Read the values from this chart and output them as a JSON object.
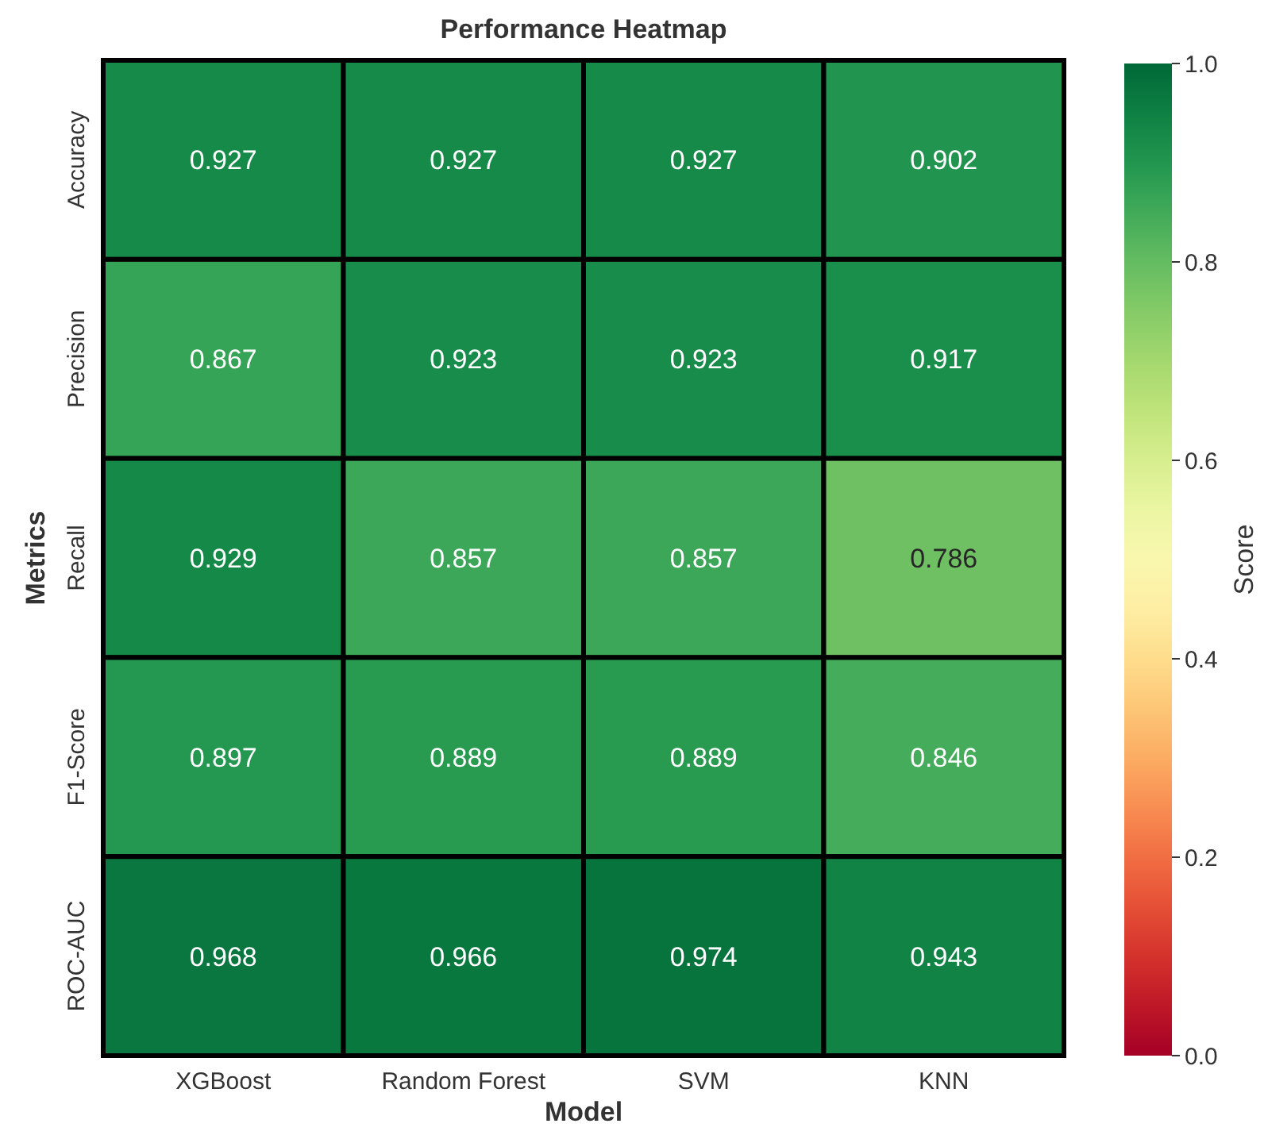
{
  "chart_data": {
    "type": "heatmap",
    "title": "Performance Heatmap",
    "xlabel": "Model",
    "ylabel": "Metrics",
    "clabel": "Score",
    "categories": [
      "XGBoost",
      "Random Forest",
      "SVM",
      "KNN"
    ],
    "y_categories": [
      "Accuracy",
      "Precision",
      "Recall",
      "F1-Score",
      "ROC-AUC"
    ],
    "cells": [
      [
        0.927,
        0.927,
        0.927,
        0.902
      ],
      [
        0.867,
        0.923,
        0.923,
        0.917
      ],
      [
        0.929,
        0.857,
        0.857,
        0.786
      ],
      [
        0.897,
        0.889,
        0.889,
        0.846
      ],
      [
        0.968,
        0.966,
        0.974,
        0.943
      ]
    ],
    "data_labels": true,
    "clim": [
      0,
      1
    ],
    "cticks": [
      {
        "value": 0,
        "label": "0.0"
      },
      {
        "value": 0.2,
        "label": "0.2"
      },
      {
        "value": 0.4,
        "label": "0.4"
      },
      {
        "value": 0.6,
        "label": "0.6"
      },
      {
        "value": 0.8,
        "label": "0.8"
      },
      {
        "value": 1,
        "label": "1.0"
      }
    ]
  }
}
